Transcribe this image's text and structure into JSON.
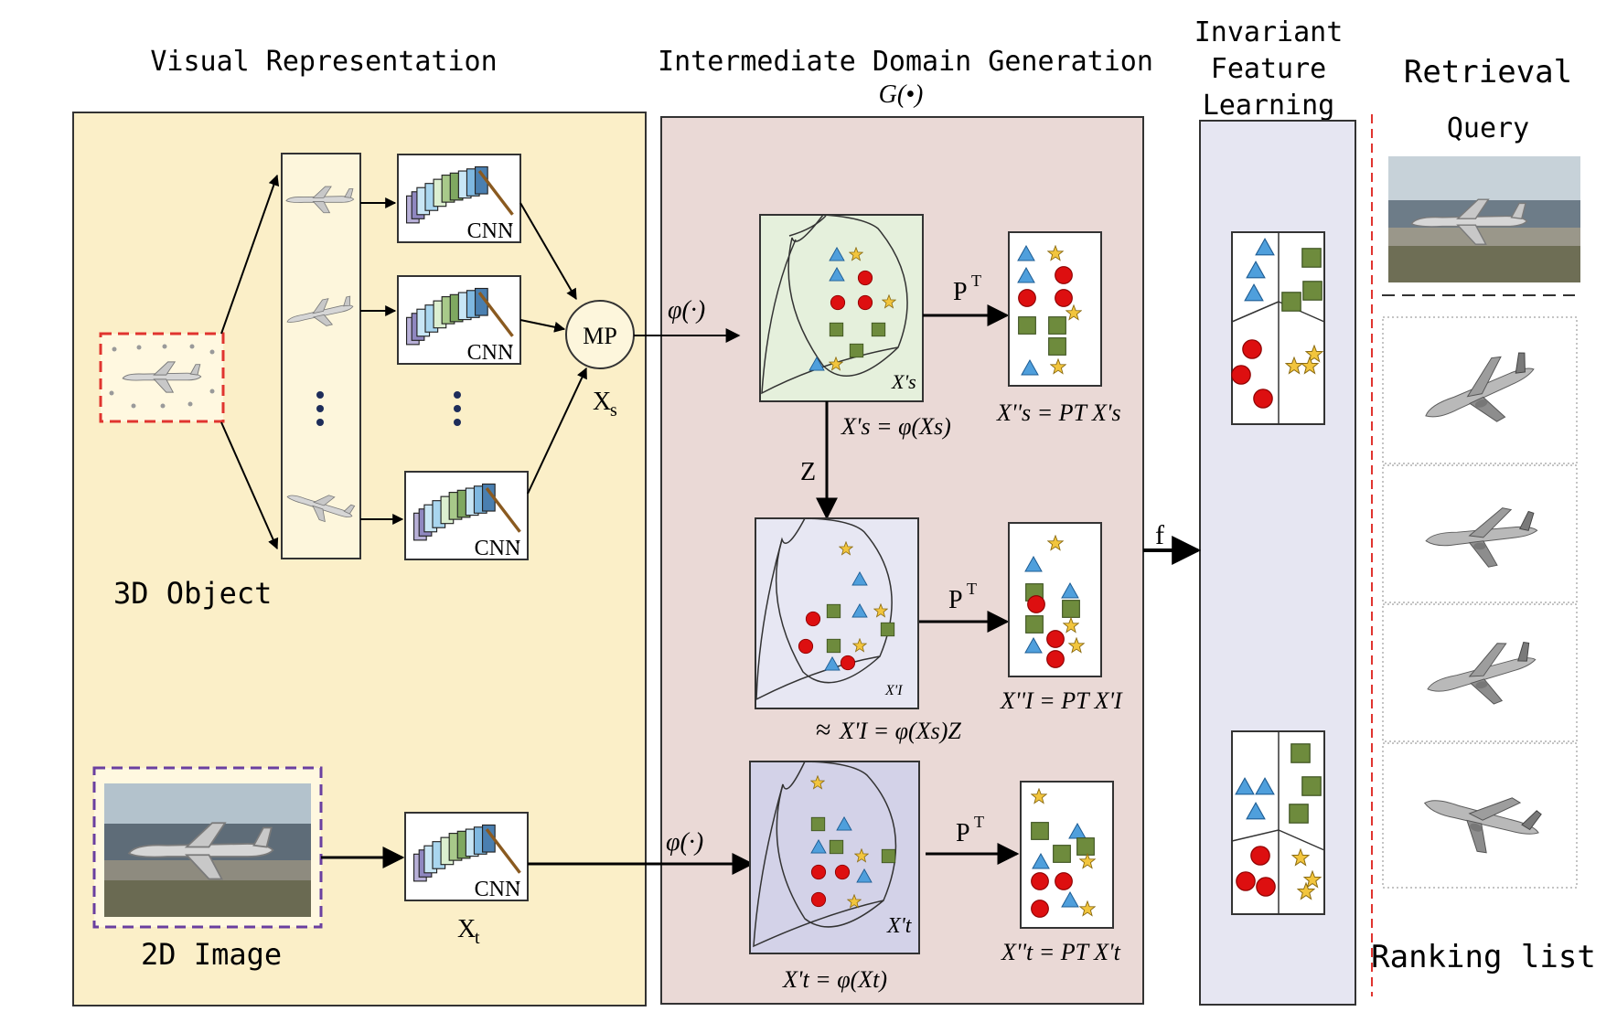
{
  "headers": {
    "visual": "Visual Representation",
    "intermediate": "Intermediate Domain Generation",
    "g_func": "G(•)",
    "invariant_line1": "Invariant",
    "invariant_line2": "Feature",
    "invariant_line3": "Learning",
    "retrieval": "Retrieval"
  },
  "labels": {
    "object_3d": "3D Object",
    "image_2d": "2D Image",
    "cnn": "CNN",
    "mp": "MP",
    "xs_base": "X",
    "xs_sub": "s",
    "xt_base": "X",
    "xt_sub": "t",
    "phi": "φ(·)",
    "z": "Z",
    "f": "f",
    "p_base": "P",
    "p_sup": "T",
    "query": "Query",
    "ranking": "Ranking list",
    "approx": "≈"
  },
  "equations": {
    "xs_prime": "X's = φ(Xs)",
    "xi_prime": "X'I = φ(Xs)Z",
    "xt_prime": "X't = φ(Xt)",
    "xs_dd": "X''s = PT X's",
    "xi_dd": "X''I = PT X'I",
    "xt_dd": "X''t = PT X't",
    "xs_panel": "X's",
    "xi_panel": "X'I",
    "xt_panel": "X't"
  },
  "colors": {
    "visual_bg": "#fbefc8",
    "intermediate_bg": "#ead9d6",
    "invariant_bg": "#e6e6f2",
    "green_panel": "#e5f0dc",
    "lavender_panel": "#e7e7f3",
    "purple_panel": "#d3d2e8",
    "triangle": "#4f9fdc",
    "circle": "#dd0f10",
    "square": "#6e8b3d",
    "star": "#f2c53d",
    "red_dash": "#e0342f",
    "purple_dash": "#6a3fa0"
  }
}
